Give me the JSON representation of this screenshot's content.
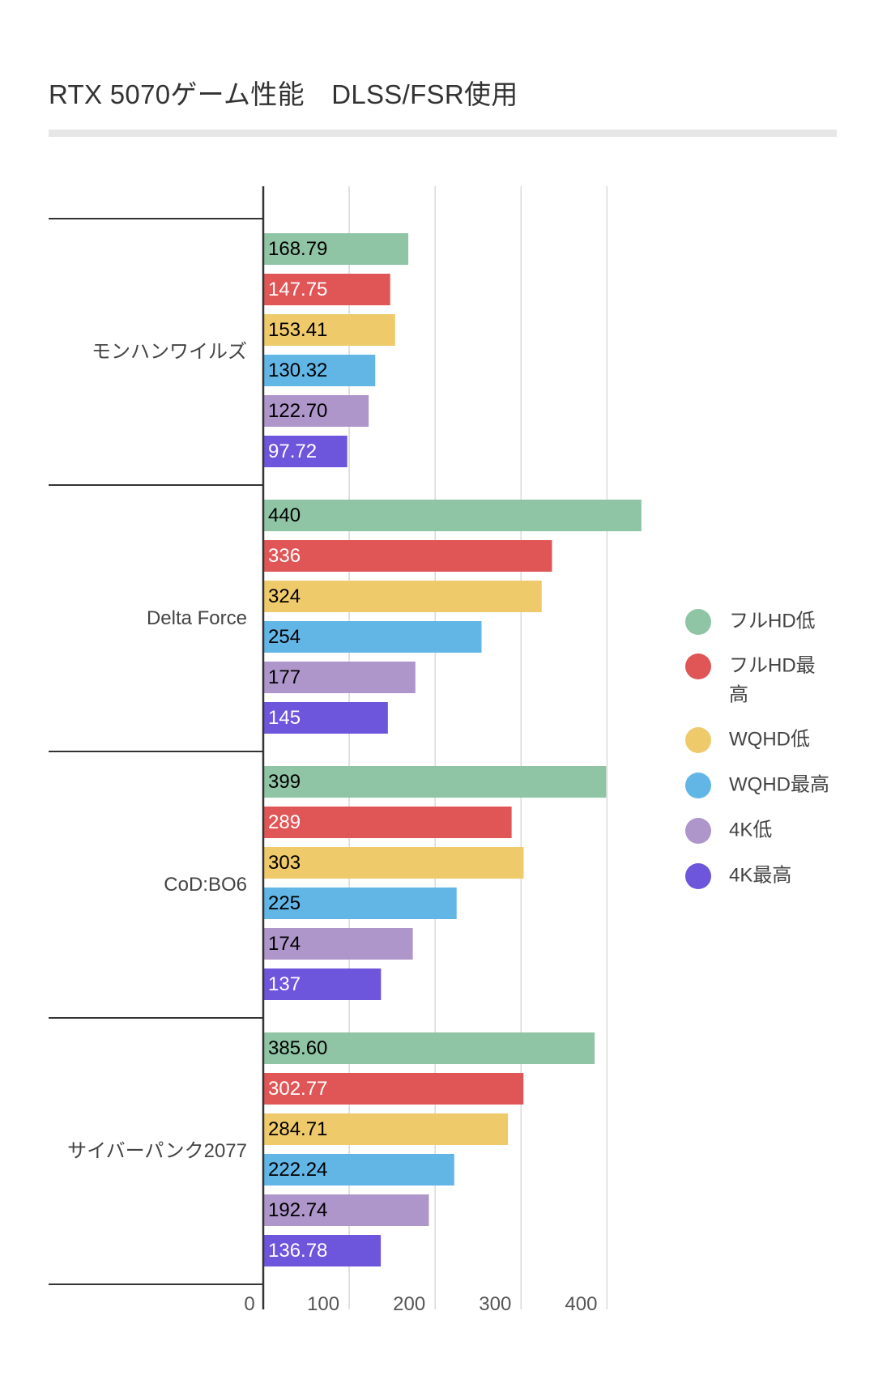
{
  "chart_data": {
    "type": "bar",
    "orientation": "horizontal",
    "title": "RTX 5070ゲーム性能　DLSS/FSR使用",
    "categories": [
      "モンハンワイルズ",
      "Delta Force",
      "CoD:BO6",
      "サイバーパンク2077"
    ],
    "series": [
      {
        "name": "フルHD低",
        "color": "#8fc4a5",
        "label_color": "#000000",
        "values": [
          168.79,
          440,
          399,
          385.6
        ],
        "labels": [
          "168.79",
          "440",
          "399",
          "385.60"
        ]
      },
      {
        "name": "フルHD最高",
        "color": "#e05657",
        "label_color": "#ffffff",
        "values": [
          147.75,
          336,
          289,
          302.77
        ],
        "labels": [
          "147.75",
          "336",
          "289",
          "302.77"
        ]
      },
      {
        "name": "WQHD低",
        "color": "#efca6b",
        "label_color": "#000000",
        "values": [
          153.41,
          324,
          303,
          284.71
        ],
        "labels": [
          "153.41",
          "324",
          "303",
          "284.71"
        ]
      },
      {
        "name": "WQHD最高",
        "color": "#62b6e6",
        "label_color": "#000000",
        "values": [
          130.32,
          254,
          225,
          222.24
        ],
        "labels": [
          "130.32",
          "254",
          "225",
          "222.24"
        ]
      },
      {
        "name": "4K低",
        "color": "#ae95ca",
        "label_color": "#000000",
        "values": [
          122.7,
          177,
          174,
          192.74
        ],
        "labels": [
          "122.70",
          "177",
          "174",
          "192.74"
        ]
      },
      {
        "name": "4K最高",
        "color": "#6d55dc",
        "label_color": "#ffffff",
        "values": [
          97.72,
          145,
          137,
          136.78
        ],
        "labels": [
          "97.72",
          "145",
          "137",
          "136.78"
        ]
      }
    ],
    "xticks": [
      0,
      100,
      200,
      300,
      400
    ],
    "xlim": [
      0,
      400
    ],
    "xlabel": "",
    "ylabel": "",
    "grid": true,
    "legend_position": "right"
  }
}
